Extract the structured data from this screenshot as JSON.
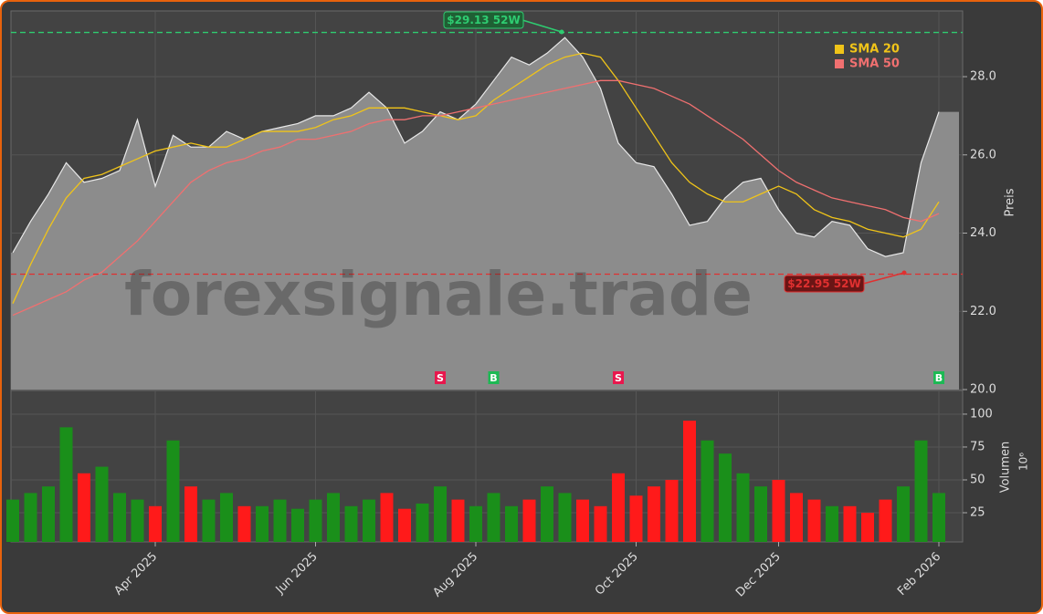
{
  "chart_data": {
    "type": "area",
    "watermark": "forexsignale.trade",
    "ylabel": "Preis",
    "categories": [
      null,
      null,
      null,
      null,
      null,
      null,
      null,
      null,
      "Apr 2025",
      null,
      null,
      null,
      null,
      null,
      null,
      null,
      null,
      "Jun 2025",
      null,
      null,
      null,
      null,
      null,
      null,
      null,
      null,
      "Aug 2025",
      null,
      null,
      null,
      null,
      null,
      null,
      null,
      null,
      "Oct 2025",
      null,
      null,
      null,
      null,
      null,
      null,
      null,
      "Dec 2025",
      null,
      null,
      null,
      null,
      null,
      null,
      null,
      null,
      "Feb 2026"
    ],
    "values": [
      23.5,
      24.3,
      25.0,
      25.8,
      25.3,
      25.4,
      25.6,
      26.9,
      25.2,
      26.5,
      26.2,
      26.2,
      26.6,
      26.4,
      26.6,
      26.7,
      26.8,
      27.0,
      27.0,
      27.2,
      27.6,
      27.2,
      26.3,
      26.6,
      27.1,
      26.9,
      27.3,
      27.9,
      28.5,
      28.3,
      28.6,
      29.0,
      28.5,
      27.7,
      26.3,
      25.8,
      25.7,
      25.0,
      24.2,
      24.3,
      24.9,
      25.3,
      25.4,
      24.6,
      24.0,
      23.9,
      24.3,
      24.2,
      23.6,
      23.4,
      23.5,
      25.8,
      27.1
    ],
    "color": "#8c8c8c",
    "series": [
      {
        "name": "SMA 20",
        "color": "#f0c419",
        "values": [
          22.2,
          23.2,
          24.1,
          24.9,
          25.4,
          25.5,
          25.7,
          25.9,
          26.1,
          26.2,
          26.3,
          26.2,
          26.2,
          26.4,
          26.6,
          26.6,
          26.6,
          26.7,
          26.9,
          27.0,
          27.2,
          27.2,
          27.2,
          27.1,
          27.0,
          26.9,
          27.0,
          27.4,
          27.7,
          28.0,
          28.3,
          28.5,
          28.6,
          28.5,
          27.9,
          27.2,
          26.5,
          25.8,
          25.3,
          25.0,
          24.8,
          24.8,
          25.0,
          25.2,
          25.0,
          24.6,
          24.4,
          24.3,
          24.1,
          24.0,
          23.9,
          24.1,
          24.8
        ]
      },
      {
        "name": "SMA 50",
        "color": "#f07070",
        "values": [
          21.9,
          22.1,
          22.3,
          22.5,
          22.8,
          23.0,
          23.4,
          23.8,
          24.3,
          24.8,
          25.3,
          25.6,
          25.8,
          25.9,
          26.1,
          26.2,
          26.4,
          26.4,
          26.5,
          26.6,
          26.8,
          26.9,
          26.9,
          27.0,
          27.0,
          27.1,
          27.2,
          27.3,
          27.4,
          27.5,
          27.6,
          27.7,
          27.8,
          27.9,
          27.9,
          27.8,
          27.7,
          27.5,
          27.3,
          27.0,
          26.7,
          26.4,
          26.0,
          25.6,
          25.3,
          25.1,
          24.9,
          24.8,
          24.7,
          24.6,
          24.4,
          24.3,
          24.5
        ]
      }
    ],
    "legend": "upper right",
    "ylim": [
      20,
      29.68
    ],
    "yticks": [
      {
        "value": 20,
        "label": "20.0"
      },
      {
        "value": 22,
        "label": "22.0"
      },
      {
        "value": 24,
        "label": "24.0"
      },
      {
        "value": 26,
        "label": "26.0"
      },
      {
        "value": 28,
        "label": "28.0"
      }
    ],
    "grid": true,
    "annotations": [
      {
        "text": "$29.13 52W",
        "value": 29.13,
        "color": "#2ecc71"
      },
      {
        "text": "$22.95 52W",
        "value": 22.95,
        "color": "#e03030"
      }
    ],
    "signals": [
      null,
      null,
      null,
      null,
      null,
      null,
      null,
      null,
      null,
      null,
      null,
      null,
      null,
      null,
      null,
      null,
      null,
      null,
      null,
      null,
      null,
      null,
      null,
      null,
      "S",
      null,
      null,
      "B",
      null,
      null,
      null,
      null,
      null,
      null,
      "S",
      null,
      null,
      null,
      null,
      null,
      null,
      null,
      null,
      null,
      null,
      null,
      null,
      null,
      null,
      null,
      null,
      null,
      "B"
    ],
    "signal_colors": {
      "S": "#e8174d",
      "B": "#1db954"
    },
    "volume": [
      35,
      40,
      45,
      90,
      55,
      60,
      40,
      35,
      30,
      80,
      45,
      35,
      40,
      30,
      30,
      35,
      28,
      35,
      40,
      30,
      35,
      40,
      28,
      32,
      45,
      35,
      30,
      40,
      30,
      35,
      45,
      40,
      35,
      30,
      55,
      38,
      45,
      50,
      95,
      80,
      70,
      55,
      45,
      50,
      40,
      35,
      30,
      30,
      25,
      35,
      45,
      80,
      40
    ],
    "volume_label": "Volumen",
    "volume_unit": "10⁶",
    "volume_up_color": "#1a8f1a",
    "volume_down_color": "#ff1a1a",
    "volume_ylim": [
      2.8,
      118
    ],
    "volume_yticks": [
      25,
      50,
      75,
      100
    ]
  }
}
